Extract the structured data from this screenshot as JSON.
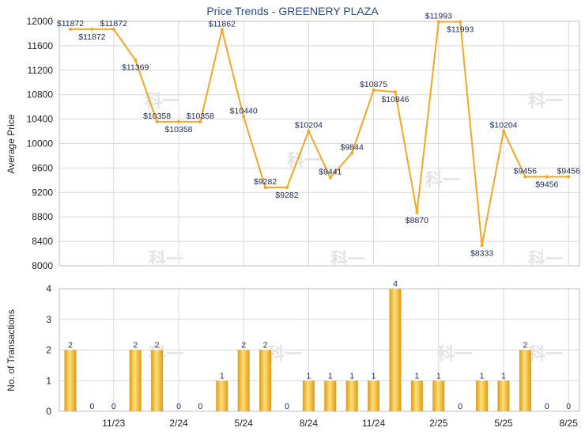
{
  "colors": {
    "accent": "#f5a623",
    "bar_light": "#ffe07a",
    "bar_dark": "#e09a10",
    "label": "#1a2a5a"
  },
  "chart_data": [
    {
      "type": "line",
      "title": "Price Trends - GREENERY PLAZA",
      "xlabel": "",
      "ylabel": "Average Price",
      "ylim": [
        8000,
        12000
      ],
      "yticks": [
        8000,
        8400,
        8800,
        9200,
        9600,
        10000,
        10400,
        10800,
        11200,
        11600,
        12000
      ],
      "x_tick_labels": [
        "11/23",
        "2/24",
        "5/24",
        "8/24",
        "11/24",
        "2/25",
        "5/25",
        "8/25"
      ],
      "x_tick_index": [
        2,
        5,
        8,
        11,
        14,
        17,
        20,
        23
      ],
      "points": [
        {
          "i": 0,
          "y": 11872,
          "label": "$11872"
        },
        {
          "i": 1,
          "y": 11872,
          "label": "$11872"
        },
        {
          "i": 2,
          "y": 11872,
          "label": "$11872"
        },
        {
          "i": 3,
          "y": 11369,
          "label": "$11369"
        },
        {
          "i": 4,
          "y": 10358,
          "label": "$10358"
        },
        {
          "i": 5,
          "y": 10358,
          "label": "$10358"
        },
        {
          "i": 6,
          "y": 10358,
          "label": "$10358"
        },
        {
          "i": 7,
          "y": 11862,
          "label": "$11862"
        },
        {
          "i": 8,
          "y": 10440,
          "label": "$10440"
        },
        {
          "i": 9,
          "y": 9282,
          "label": "$9282"
        },
        {
          "i": 10,
          "y": 9282,
          "label": "$9282"
        },
        {
          "i": 11,
          "y": 10204,
          "label": "$10204"
        },
        {
          "i": 12,
          "y": 9441,
          "label": "$9441"
        },
        {
          "i": 13,
          "y": 9844,
          "label": "$9844"
        },
        {
          "i": 14,
          "y": 10875,
          "label": "$10875"
        },
        {
          "i": 15,
          "y": 10846,
          "label": "$10846"
        },
        {
          "i": 16,
          "y": 8870,
          "label": "$8870"
        },
        {
          "i": 17,
          "y": 11993,
          "label": "$11993"
        },
        {
          "i": 18,
          "y": 11993,
          "label": "$11993"
        },
        {
          "i": 19,
          "y": 8333,
          "label": "$8333"
        },
        {
          "i": 20,
          "y": 10204,
          "label": "$10204"
        },
        {
          "i": 21,
          "y": 9456,
          "label": "$9456"
        },
        {
          "i": 22,
          "y": 9456,
          "label": "$9456"
        },
        {
          "i": 23,
          "y": 9456,
          "label": "$9456"
        }
      ]
    },
    {
      "type": "bar",
      "title": "",
      "xlabel": "",
      "ylabel": "No. of Transactions",
      "ylim": [
        0,
        4
      ],
      "yticks": [
        0,
        1,
        2,
        3,
        4
      ],
      "x_tick_labels": [
        "11/23",
        "2/24",
        "5/24",
        "8/24",
        "11/24",
        "2/25",
        "5/25",
        "8/25"
      ],
      "x_tick_index": [
        2,
        5,
        8,
        11,
        14,
        17,
        20,
        23
      ],
      "values": [
        2,
        0,
        0,
        2,
        2,
        0,
        0,
        1,
        2,
        2,
        0,
        1,
        1,
        1,
        1,
        4,
        1,
        1,
        0,
        1,
        1,
        2,
        0,
        0
      ]
    }
  ],
  "watermark": "科一"
}
